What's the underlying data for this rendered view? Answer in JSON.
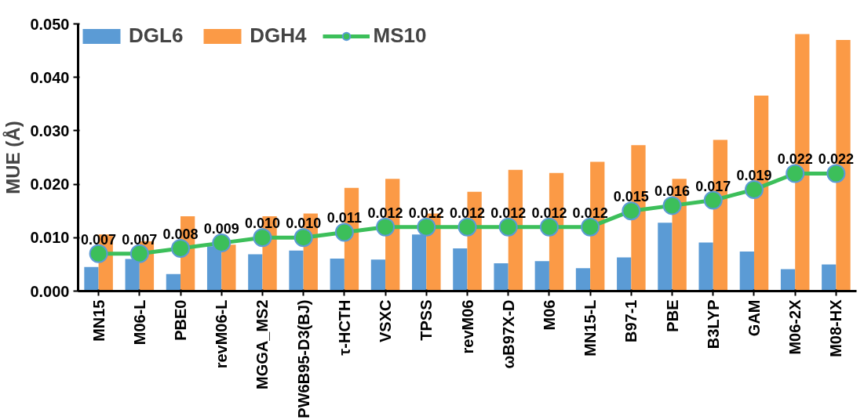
{
  "chart_data": {
    "type": "bar",
    "ylabel": "MUE (Å)",
    "categories": [
      "MN15",
      "M06-L",
      "PBE0",
      "revM06-L",
      "MGGA_MS2",
      "PW6B95-D3(BJ)",
      "τ-HCTH",
      "VSXC",
      "TPSS",
      "revM06",
      "ωB97X-D",
      "M06",
      "MN15-L",
      "B97-1",
      "PBE",
      "B3LYP",
      "GAM",
      "M06-2X",
      "M08-HX"
    ],
    "series": [
      {
        "name": "DGL6",
        "color": "#5b9bd5",
        "values": [
          0.0045,
          0.006,
          0.0032,
          0.0084,
          0.0069,
          0.0076,
          0.0061,
          0.0059,
          0.0106,
          0.008,
          0.0052,
          0.0056,
          0.0043,
          0.0063,
          0.0128,
          0.0091,
          0.0074,
          0.0041,
          0.005
        ]
      },
      {
        "name": "DGH4",
        "color": "#fb9a46",
        "values": [
          0.0106,
          0.0093,
          0.014,
          0.0087,
          0.014,
          0.0145,
          0.0193,
          0.021,
          0.0145,
          0.0186,
          0.0227,
          0.0221,
          0.0242,
          0.0273,
          0.021,
          0.0283,
          0.0366,
          0.0481,
          0.047
        ]
      },
      {
        "name": "MS10",
        "type": "line",
        "color": "#3cbf5a",
        "marker": "circle",
        "value_labels": [
          "0.007",
          "0.007",
          "0.008",
          "0.009",
          "0.010",
          "0.010",
          "0.011",
          "0.012",
          "0.012",
          "0.012",
          "0.012",
          "0.012",
          "0.012",
          "0.015",
          "0.016",
          "0.017",
          "0.019",
          "0.022",
          "0.022"
        ],
        "values": [
          0.007,
          0.007,
          0.008,
          0.009,
          0.01,
          0.01,
          0.011,
          0.012,
          0.012,
          0.012,
          0.012,
          0.012,
          0.012,
          0.015,
          0.016,
          0.017,
          0.019,
          0.022,
          0.022
        ]
      }
    ],
    "ylim": [
      0,
      0.05
    ],
    "yticks": [
      {
        "value": 0,
        "label": "0.000"
      },
      {
        "value": 0.01,
        "label": "0.010"
      },
      {
        "value": 0.02,
        "label": "0.020"
      },
      {
        "value": 0.03,
        "label": "0.030"
      },
      {
        "value": 0.04,
        "label": "0.040"
      },
      {
        "value": 0.05,
        "label": "0.050"
      }
    ],
    "grid": false,
    "legend": "top left"
  }
}
